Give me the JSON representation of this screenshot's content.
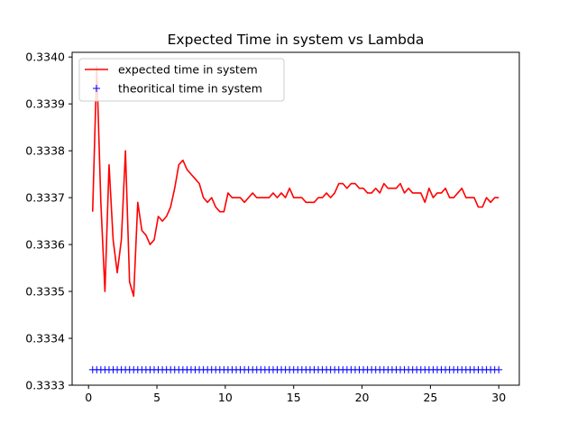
{
  "chart_data": {
    "type": "line",
    "title": "Expected Time in system vs Lambda",
    "xlabel": "",
    "ylabel": "",
    "xlim": [
      -1.2,
      31.5
    ],
    "ylim": [
      0.3333,
      0.33401
    ],
    "xticks": [
      0,
      5,
      10,
      15,
      20,
      25,
      30
    ],
    "xtick_labels": [
      "0",
      "5",
      "10",
      "15",
      "20",
      "25",
      "30"
    ],
    "yticks": [
      0.3333,
      0.3334,
      0.3335,
      0.3336,
      0.3337,
      0.3338,
      0.3339,
      0.334
    ],
    "ytick_labels": [
      "0.3333",
      "0.3334",
      "0.3335",
      "0.3336",
      "0.3337",
      "0.3338",
      "0.3339",
      "0.3340"
    ],
    "grid": false,
    "legend_position": "upper-left",
    "series": [
      {
        "name": "expected time in system",
        "style": "line",
        "color": "#ff0000",
        "x": [
          0.3,
          0.6,
          0.9,
          1.2,
          1.5,
          1.8,
          2.1,
          2.4,
          2.7,
          3.0,
          3.3,
          3.6,
          3.9,
          4.2,
          4.5,
          4.8,
          5.1,
          5.4,
          5.7,
          6.0,
          6.3,
          6.6,
          6.9,
          7.2,
          7.5,
          7.8,
          8.1,
          8.4,
          8.7,
          9.0,
          9.3,
          9.6,
          9.9,
          10.2,
          10.5,
          10.8,
          11.1,
          11.4,
          11.7,
          12.0,
          12.3,
          12.6,
          12.9,
          13.2,
          13.5,
          13.8,
          14.1,
          14.4,
          14.7,
          15.0,
          15.3,
          15.6,
          15.9,
          16.2,
          16.5,
          16.8,
          17.1,
          17.4,
          17.7,
          18.0,
          18.3,
          18.6,
          18.9,
          19.2,
          19.5,
          19.8,
          20.1,
          20.4,
          20.7,
          21.0,
          21.3,
          21.6,
          21.9,
          22.2,
          22.5,
          22.8,
          23.1,
          23.4,
          23.7,
          24.0,
          24.3,
          24.6,
          24.9,
          25.2,
          25.5,
          25.8,
          26.1,
          26.4,
          26.7,
          27.0,
          27.3,
          27.6,
          27.9,
          28.2,
          28.5,
          28.8,
          29.1,
          29.4,
          29.7,
          30.0
        ],
        "y": [
          0.33367,
          0.33398,
          0.33369,
          0.3335,
          0.33377,
          0.33361,
          0.33354,
          0.33361,
          0.3338,
          0.33352,
          0.33349,
          0.33369,
          0.33363,
          0.33362,
          0.3336,
          0.33361,
          0.33366,
          0.33365,
          0.33366,
          0.33368,
          0.33372,
          0.33377,
          0.33378,
          0.33376,
          0.33375,
          0.33374,
          0.33373,
          0.3337,
          0.33369,
          0.3337,
          0.33368,
          0.33367,
          0.33367,
          0.33371,
          0.3337,
          0.3337,
          0.3337,
          0.33369,
          0.3337,
          0.33371,
          0.3337,
          0.3337,
          0.3337,
          0.3337,
          0.33371,
          0.3337,
          0.33371,
          0.3337,
          0.33372,
          0.3337,
          0.3337,
          0.3337,
          0.33369,
          0.33369,
          0.33369,
          0.3337,
          0.3337,
          0.33371,
          0.3337,
          0.33371,
          0.33373,
          0.33373,
          0.33372,
          0.33373,
          0.33373,
          0.33372,
          0.33372,
          0.33371,
          0.33371,
          0.33372,
          0.33371,
          0.33373,
          0.33372,
          0.33372,
          0.33372,
          0.33373,
          0.33371,
          0.33372,
          0.33371,
          0.33371,
          0.33371,
          0.33369,
          0.33372,
          0.3337,
          0.33371,
          0.33371,
          0.33372,
          0.3337,
          0.3337,
          0.33371,
          0.33372,
          0.3337,
          0.3337,
          0.3337,
          0.33368,
          0.33368,
          0.3337,
          0.33369,
          0.3337,
          0.3337
        ]
      },
      {
        "name": "theoritical time in system",
        "style": "marker",
        "marker": "+",
        "color": "#0000ff",
        "x": [
          0.3,
          0.6,
          0.9,
          1.2,
          1.5,
          1.8,
          2.1,
          2.4,
          2.7,
          3.0,
          3.3,
          3.6,
          3.9,
          4.2,
          4.5,
          4.8,
          5.1,
          5.4,
          5.7,
          6.0,
          6.3,
          6.6,
          6.9,
          7.2,
          7.5,
          7.8,
          8.1,
          8.4,
          8.7,
          9.0,
          9.3,
          9.6,
          9.9,
          10.2,
          10.5,
          10.8,
          11.1,
          11.4,
          11.7,
          12.0,
          12.3,
          12.6,
          12.9,
          13.2,
          13.5,
          13.8,
          14.1,
          14.4,
          14.7,
          15.0,
          15.3,
          15.6,
          15.9,
          16.2,
          16.5,
          16.8,
          17.1,
          17.4,
          17.7,
          18.0,
          18.3,
          18.6,
          18.9,
          19.2,
          19.5,
          19.8,
          20.1,
          20.4,
          20.7,
          21.0,
          21.3,
          21.6,
          21.9,
          22.2,
          22.5,
          22.8,
          23.1,
          23.4,
          23.7,
          24.0,
          24.3,
          24.6,
          24.9,
          25.2,
          25.5,
          25.8,
          26.1,
          26.4,
          26.7,
          27.0,
          27.3,
          27.6,
          27.9,
          28.2,
          28.5,
          28.8,
          29.1,
          29.4,
          29.7,
          30.0
        ],
        "y_constant": 0.333333
      }
    ]
  }
}
